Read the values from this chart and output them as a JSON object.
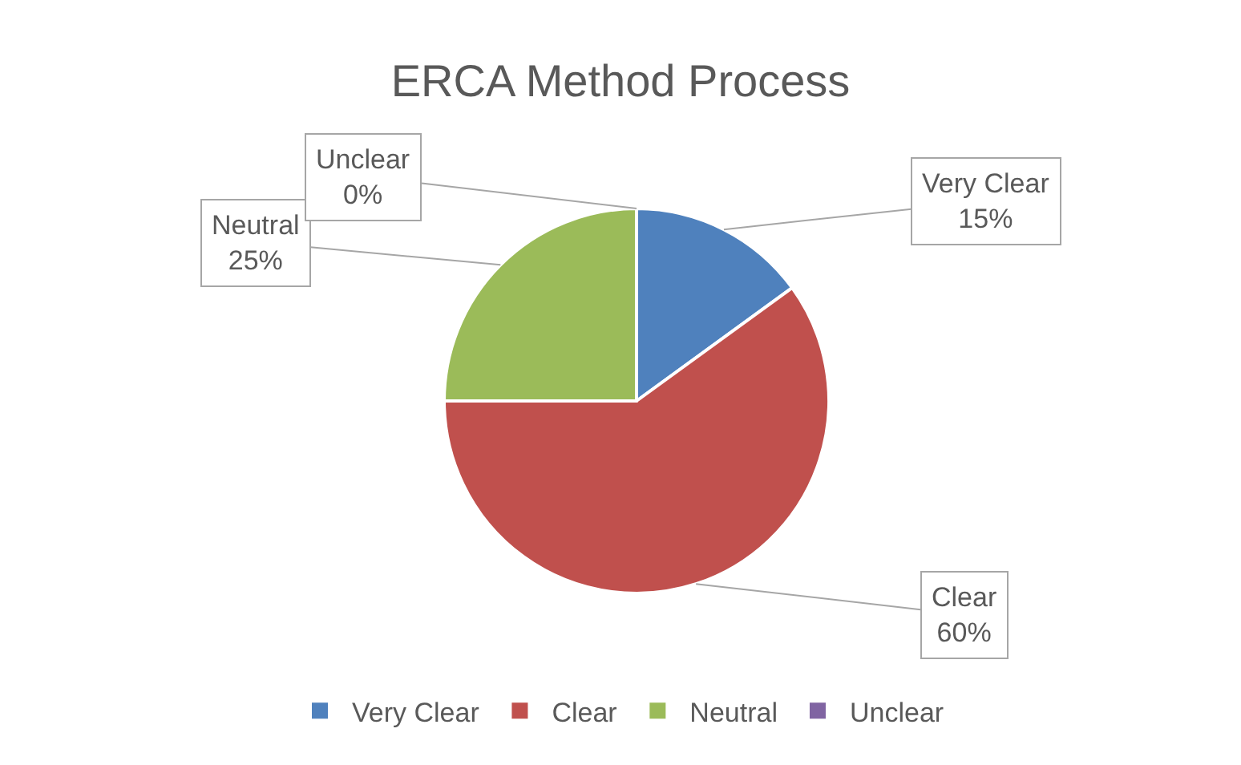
{
  "chart_data": {
    "type": "pie",
    "title": "ERCA Method Process",
    "categories": [
      "Very Clear",
      "Clear",
      "Neutral",
      "Unclear"
    ],
    "values": [
      15,
      60,
      25,
      0
    ],
    "value_labels": [
      "15%",
      "60%",
      "25%",
      "0%"
    ],
    "colors": [
      "#4f81bd",
      "#c0504d",
      "#9bbb59",
      "#8064a2"
    ],
    "legend": "bottom"
  }
}
